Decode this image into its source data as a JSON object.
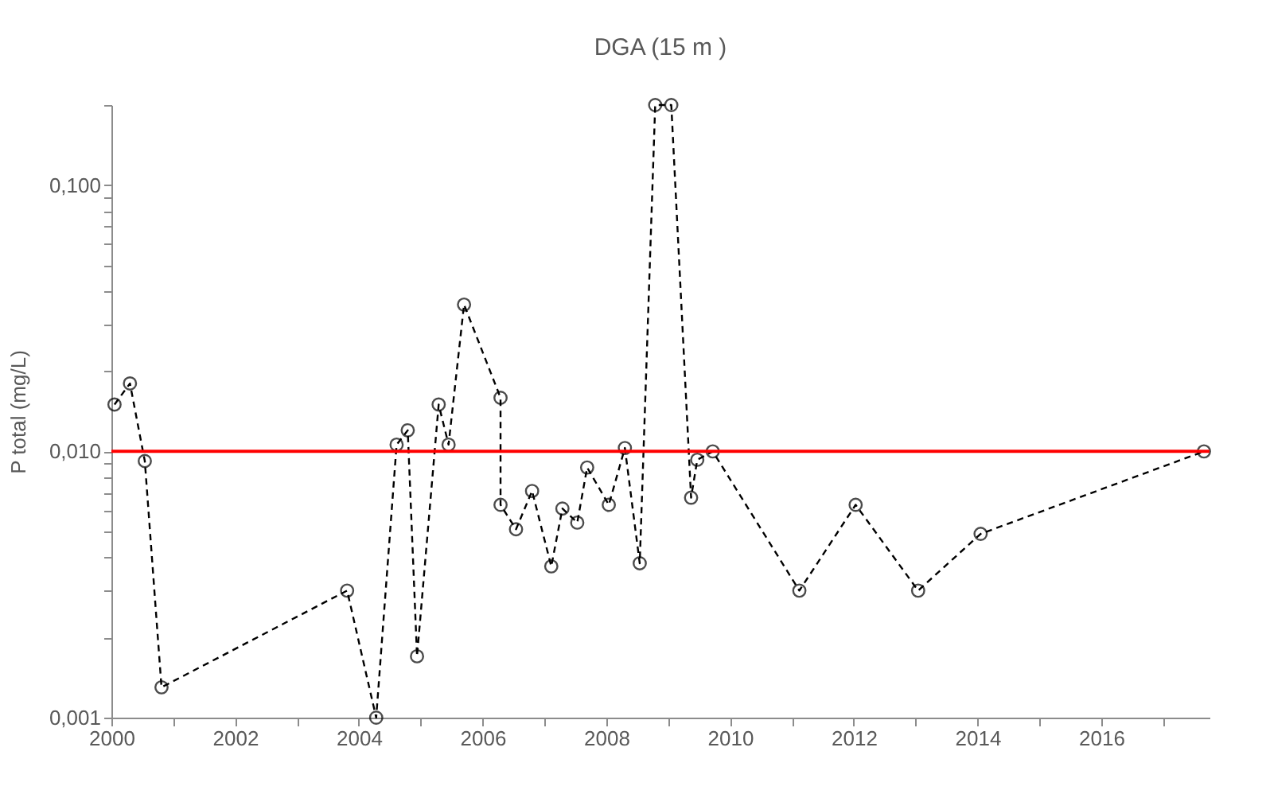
{
  "chart_data": {
    "type": "line",
    "title": "DGA (15 m )",
    "ylabel": "P total (mg/L)",
    "x": [
      2000.05,
      2000.3,
      2000.54,
      2000.81,
      2003.81,
      2004.28,
      2004.61,
      2004.79,
      2004.94,
      2005.29,
      2005.45,
      2005.7,
      2006.29,
      2006.29,
      2006.54,
      2006.8,
      2007.11,
      2007.29,
      2007.53,
      2007.69,
      2008.04,
      2008.3,
      2008.54,
      2008.79,
      2009.05,
      2009.37,
      2009.47,
      2009.72,
      2011.12,
      2012.03,
      2013.04,
      2014.05,
      2017.66
    ],
    "series": [
      {
        "color": "#000000",
        "values": [
          0.015,
          0.018,
          0.0092,
          0.0013,
          0.003,
          0.001,
          0.0106,
          0.012,
          0.0017,
          0.015,
          0.0106,
          0.0356,
          0.0159,
          0.0063,
          0.0051,
          0.0071,
          0.0037,
          0.0061,
          0.0054,
          0.0087,
          0.0063,
          0.0103,
          0.0038,
          0.2,
          0.2,
          0.0067,
          0.0093,
          0.01,
          0.003,
          0.0063,
          0.003,
          0.0049,
          0.01
        ]
      }
    ],
    "log": true,
    "marker": "circle",
    "line_style": "dashed",
    "grid": false,
    "xlim": [
      2000,
      2017.75
    ],
    "xticks": [
      2000,
      {
        "value": 2001,
        "label": null
      },
      2002,
      {
        "value": 2003,
        "label": null
      },
      2004,
      {
        "value": 2005,
        "label": null
      },
      2006,
      {
        "value": 2007,
        "label": null
      },
      2008,
      {
        "value": 2009,
        "label": null
      },
      2010,
      {
        "value": 2011,
        "label": null
      },
      2012,
      {
        "value": 2013,
        "label": null
      },
      2014,
      {
        "value": 2015,
        "label": null
      },
      2016,
      {
        "value": 2017,
        "label": null
      }
    ],
    "ylim": [
      0.001,
      0.2
    ],
    "yticks": [
      {
        "value": 0.001,
        "label": "0,001"
      },
      {
        "value": 0.002,
        "label": null
      },
      {
        "value": 0.003,
        "label": null
      },
      {
        "value": 0.004,
        "label": null
      },
      {
        "value": 0.005,
        "label": null
      },
      {
        "value": 0.006,
        "label": null
      },
      {
        "value": 0.007,
        "label": null
      },
      {
        "value": 0.008,
        "label": null
      },
      {
        "value": 0.009,
        "label": null
      },
      {
        "value": 0.01,
        "label": "0,010"
      },
      {
        "value": 0.02,
        "label": null
      },
      {
        "value": 0.03,
        "label": null
      },
      {
        "value": 0.04,
        "label": null
      },
      {
        "value": 0.05,
        "label": null
      },
      {
        "value": 0.06,
        "label": null
      },
      {
        "value": 0.07,
        "label": null
      },
      {
        "value": 0.08,
        "label": null
      },
      {
        "value": 0.09,
        "label": null
      },
      {
        "value": 0.1,
        "label": "0,100"
      },
      {
        "value": 0.2,
        "label": null
      }
    ],
    "ref_lines": [
      {
        "axis": "y",
        "value": 0.01,
        "color": "#ff0000",
        "line_style": "solid"
      }
    ]
  }
}
